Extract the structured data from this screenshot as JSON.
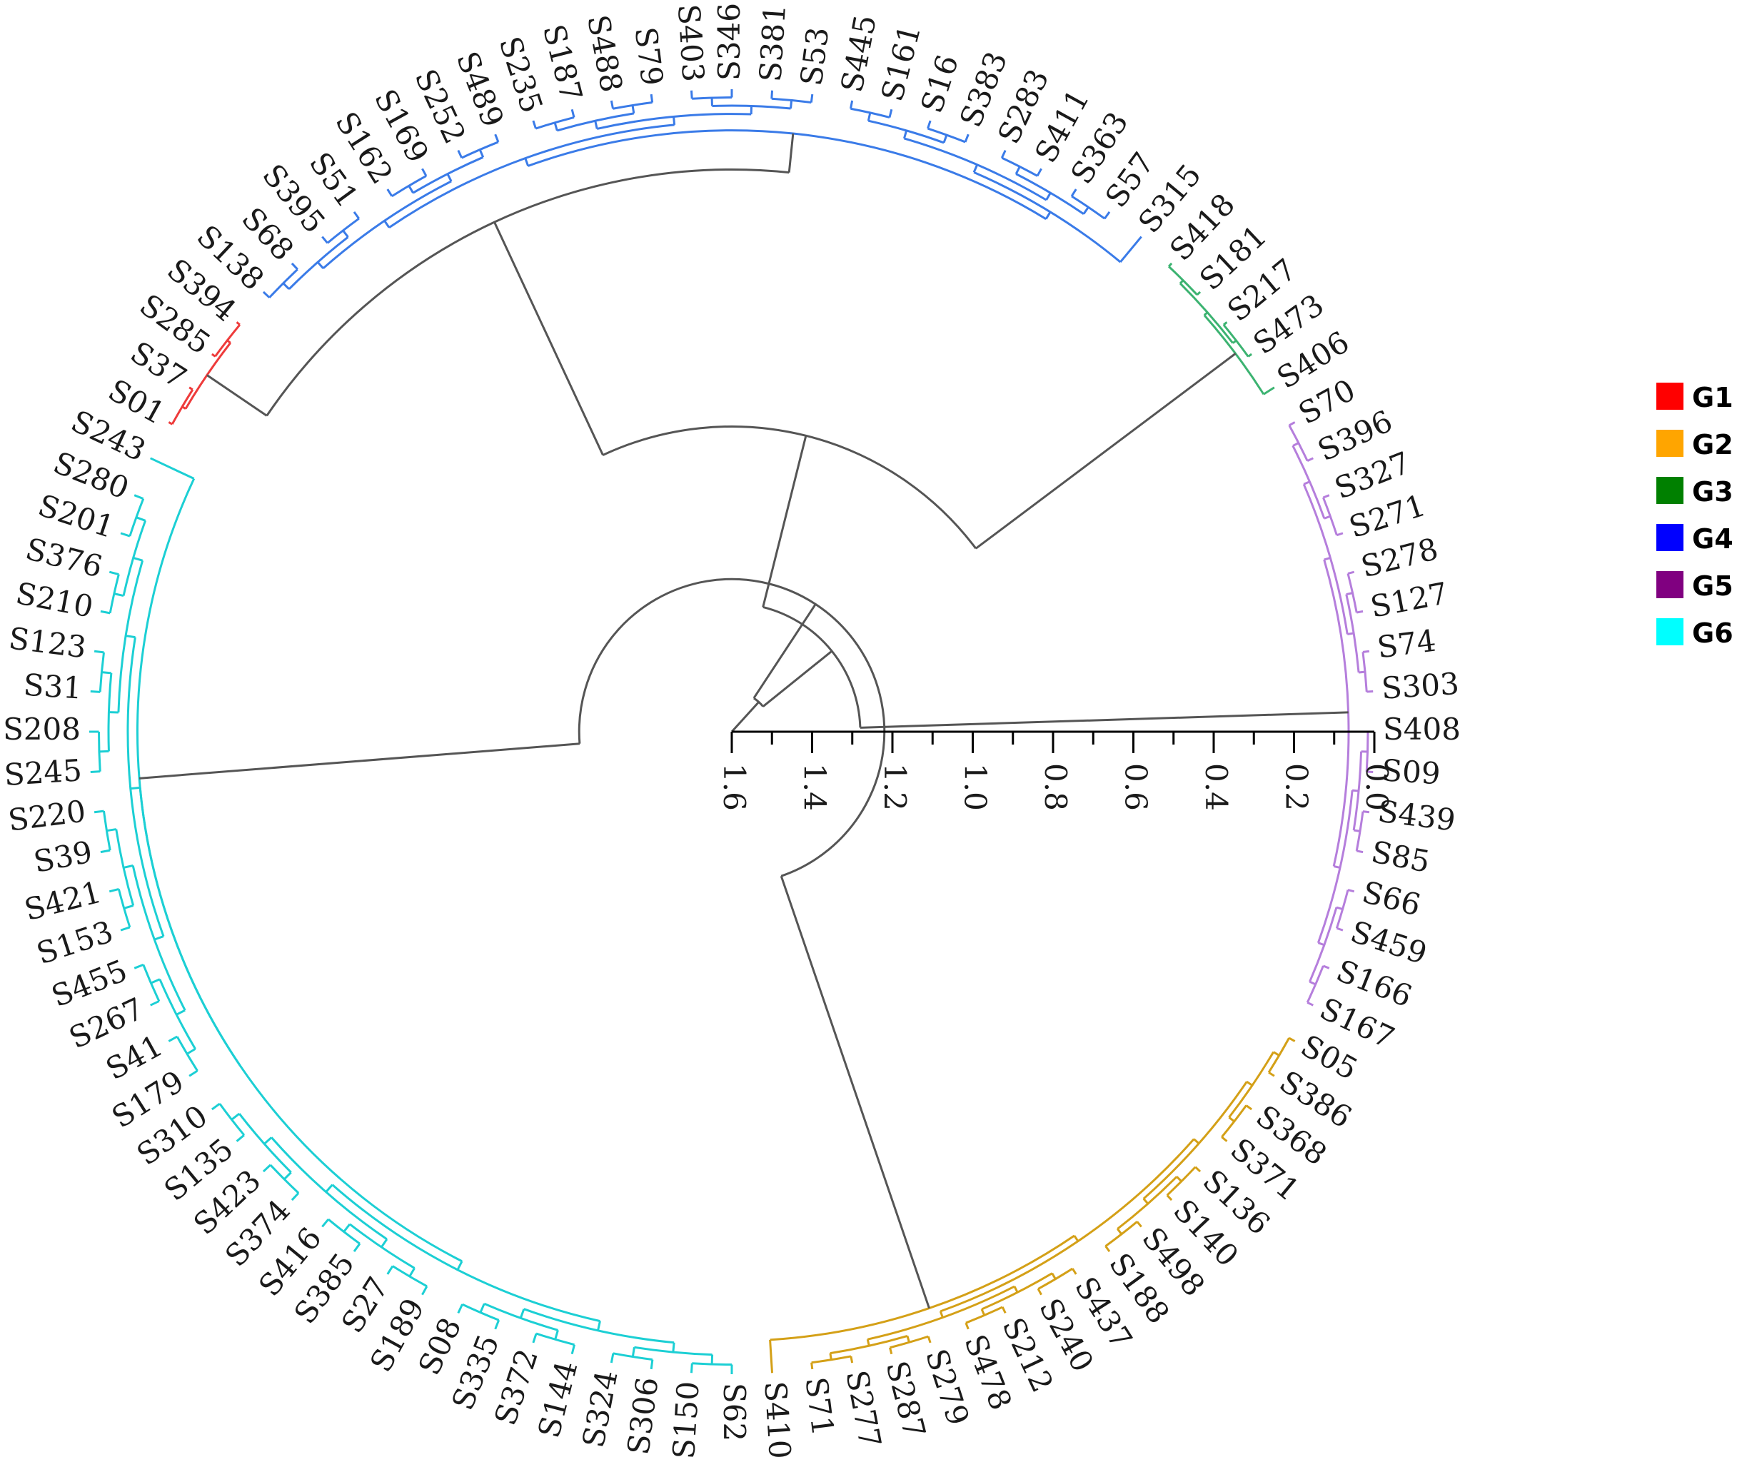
{
  "figure": "circular dendrogram",
  "leaves_clockwise_from_bottom": [
    "S62",
    "S150",
    "S306",
    "S324",
    "S144",
    "S372",
    "S335",
    "S08",
    "S189",
    "S27",
    "S385",
    "S416",
    "S374",
    "S423",
    "S135",
    "S310",
    "S179",
    "S41",
    "S267",
    "S455",
    "S153",
    "S421",
    "S39",
    "S220",
    "S245",
    "S208",
    "S31",
    "S123",
    "S210",
    "S376",
    "S201",
    "S280",
    "S243",
    "S01",
    "S37",
    "S285",
    "S394",
    "S138",
    "S68",
    "S395",
    "S51",
    "S162",
    "S169",
    "S252",
    "S489",
    "S235",
    "S187",
    "S488",
    "S79",
    "S403",
    "S346",
    "S381",
    "S53",
    "S445",
    "S161",
    "S16",
    "S383",
    "S283",
    "S411",
    "S363",
    "S57",
    "S315",
    "S418",
    "S181",
    "S217",
    "S473",
    "S406",
    "S70",
    "S396",
    "S327",
    "S271",
    "S278",
    "S127",
    "S74",
    "S303",
    "S408",
    "S09",
    "S439",
    "S85",
    "S66",
    "S459",
    "S166",
    "S167",
    "S05",
    "S386",
    "S368",
    "S371",
    "S136",
    "S140",
    "S498",
    "S188",
    "S437",
    "S240",
    "S212",
    "S478",
    "S279",
    "S287",
    "S277",
    "S71",
    "S410"
  ],
  "groups": [
    {
      "name": "G1",
      "color": "#ff0000",
      "leaf_color": "#ee3b3b",
      "members": [
        "S01",
        "S37",
        "S285",
        "S394"
      ]
    },
    {
      "name": "G2",
      "color": "#ffa500",
      "leaf_color": "#d4a017",
      "members": [
        "S05",
        "S386",
        "S368",
        "S371",
        "S136",
        "S140",
        "S498",
        "S188",
        "S437",
        "S240",
        "S212",
        "S478",
        "S279",
        "S287",
        "S277",
        "S71",
        "S410"
      ]
    },
    {
      "name": "G3",
      "color": "#008000",
      "leaf_color": "#3cb371",
      "members": [
        "S418",
        "S181",
        "S217",
        "S473",
        "S406"
      ]
    },
    {
      "name": "G4",
      "color": "#0000ff",
      "leaf_color": "#3a7be8",
      "members": [
        "S138",
        "S68",
        "S395",
        "S51",
        "S162",
        "S169",
        "S252",
        "S489",
        "S235",
        "S187",
        "S488",
        "S79",
        "S403",
        "S346",
        "S381",
        "S53",
        "S445",
        "S161",
        "S16",
        "S383",
        "S283",
        "S411",
        "S363",
        "S57",
        "S315"
      ]
    },
    {
      "name": "G5",
      "color": "#800080",
      "leaf_color": "#b57edc",
      "members": [
        "S70",
        "S396",
        "S327",
        "S271",
        "S278",
        "S127",
        "S74",
        "S303",
        "S408",
        "S09",
        "S439",
        "S85",
        "S66",
        "S459",
        "S166",
        "S167"
      ]
    },
    {
      "name": "G6",
      "color": "#00ffff",
      "leaf_color": "#1ccfd4",
      "members": [
        "S62",
        "S150",
        "S306",
        "S324",
        "S144",
        "S372",
        "S335",
        "S08",
        "S189",
        "S27",
        "S385",
        "S416",
        "S374",
        "S423",
        "S135",
        "S310",
        "S179",
        "S41",
        "S267",
        "S455",
        "S153",
        "S421",
        "S39",
        "S220",
        "S245",
        "S208",
        "S31",
        "S123",
        "S210",
        "S376",
        "S201",
        "S280",
        "S243"
      ]
    }
  ],
  "scale": {
    "ticks": [
      "1.6",
      "1.4",
      "1.2",
      "1.0",
      "0.8",
      "0.6",
      "0.4",
      "0.2",
      "0.0"
    ],
    "tick_values": [
      1.6,
      1.4,
      1.2,
      1.0,
      0.8,
      0.6,
      0.4,
      0.2,
      0.0
    ],
    "max": 1.6
  },
  "tree": {
    "root_height": 1.6,
    "main_nodes": [
      {
        "height": 1.5,
        "children": [
          "A",
          "B"
        ]
      },
      {
        "id": "A",
        "height": 1.28,
        "children": [
          "G5",
          "G346"
        ]
      },
      {
        "id": "G346",
        "height": 0.84,
        "children": [
          "G3",
          "G41"
        ]
      },
      {
        "id": "G41",
        "height": 0.2,
        "children": [
          "G4",
          "G1"
        ]
      },
      {
        "id": "B",
        "height": 1.22,
        "children": [
          "G2",
          "G6"
        ]
      }
    ]
  },
  "legend": {
    "items": [
      "G1",
      "G2",
      "G3",
      "G4",
      "G5",
      "G6"
    ]
  }
}
